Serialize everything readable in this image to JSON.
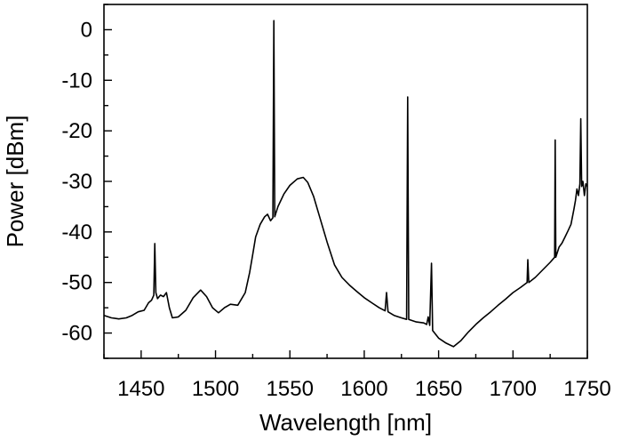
{
  "chart_data": {
    "type": "line",
    "title": "",
    "xlabel": "Wavelength [nm]",
    "ylabel": "Power [dBm]",
    "xlim": [
      1425,
      1750
    ],
    "ylim": [
      -65,
      5
    ],
    "xticks": [
      1450,
      1500,
      1550,
      1600,
      1650,
      1700,
      1750
    ],
    "yticks": [
      0,
      -10,
      -20,
      -30,
      -40,
      -50,
      -60
    ],
    "grid": false,
    "legend": "none",
    "line_color": "#000000",
    "series": [
      {
        "points": [
          [
            1425,
            -56.5
          ],
          [
            1430,
            -57.0
          ],
          [
            1435,
            -57.2
          ],
          [
            1440,
            -57.0
          ],
          [
            1444,
            -56.5
          ],
          [
            1448,
            -55.8
          ],
          [
            1452,
            -55.5
          ],
          [
            1455,
            -54.0
          ],
          [
            1457,
            -53.5
          ],
          [
            1458.5,
            -52.5
          ],
          [
            1459.2,
            -42.3
          ],
          [
            1459.9,
            -52.0
          ],
          [
            1461,
            -53.2
          ],
          [
            1463,
            -52.5
          ],
          [
            1465,
            -52.8
          ],
          [
            1467,
            -52.0
          ],
          [
            1469,
            -55.0
          ],
          [
            1471,
            -57.0
          ],
          [
            1475,
            -56.8
          ],
          [
            1480,
            -55.5
          ],
          [
            1485,
            -53.0
          ],
          [
            1490,
            -51.5
          ],
          [
            1494,
            -52.8
          ],
          [
            1498,
            -55.0
          ],
          [
            1502,
            -56.0
          ],
          [
            1506,
            -55.0
          ],
          [
            1510,
            -54.3
          ],
          [
            1515,
            -54.5
          ],
          [
            1520,
            -52.0
          ],
          [
            1523,
            -48.0
          ],
          [
            1525,
            -44.5
          ],
          [
            1527,
            -41.0
          ],
          [
            1530,
            -38.5
          ],
          [
            1533,
            -37.0
          ],
          [
            1535,
            -36.5
          ],
          [
            1537,
            -37.8
          ],
          [
            1538.6,
            -37.2
          ],
          [
            1539.2,
            1.8
          ],
          [
            1539.8,
            -37.0
          ],
          [
            1542,
            -35.0
          ],
          [
            1546,
            -32.5
          ],
          [
            1550,
            -30.8
          ],
          [
            1555,
            -29.5
          ],
          [
            1559,
            -29.2
          ],
          [
            1562,
            -30.2
          ],
          [
            1566,
            -33.0
          ],
          [
            1570,
            -37.0
          ],
          [
            1575,
            -42.0
          ],
          [
            1580,
            -46.5
          ],
          [
            1585,
            -49.0
          ],
          [
            1590,
            -50.5
          ],
          [
            1595,
            -51.8
          ],
          [
            1600,
            -53.0
          ],
          [
            1605,
            -54.0
          ],
          [
            1610,
            -55.0
          ],
          [
            1614,
            -55.6
          ],
          [
            1615,
            -52.0
          ],
          [
            1616,
            -55.8
          ],
          [
            1620,
            -56.5
          ],
          [
            1625,
            -57.0
          ],
          [
            1628.5,
            -57.3
          ],
          [
            1629.2,
            -13.3
          ],
          [
            1629.9,
            -57.3
          ],
          [
            1635,
            -57.8
          ],
          [
            1640,
            -58.0
          ],
          [
            1642,
            -58.3
          ],
          [
            1643,
            -56.8
          ],
          [
            1644,
            -58.5
          ],
          [
            1645.2,
            -46.2
          ],
          [
            1646,
            -59.5
          ],
          [
            1650,
            -61.0
          ],
          [
            1655,
            -62.0
          ],
          [
            1660,
            -62.7
          ],
          [
            1665,
            -61.5
          ],
          [
            1670,
            -59.8
          ],
          [
            1675,
            -58.3
          ],
          [
            1680,
            -57.0
          ],
          [
            1685,
            -55.8
          ],
          [
            1690,
            -54.5
          ],
          [
            1695,
            -53.3
          ],
          [
            1700,
            -52.0
          ],
          [
            1705,
            -51.0
          ],
          [
            1709.5,
            -50.0
          ],
          [
            1710,
            -45.5
          ],
          [
            1710.6,
            -50.0
          ],
          [
            1715,
            -49.0
          ],
          [
            1720,
            -47.5
          ],
          [
            1725,
            -46.0
          ],
          [
            1728,
            -45.0
          ],
          [
            1728.4,
            -21.8
          ],
          [
            1728.8,
            -45.0
          ],
          [
            1731,
            -43.0
          ],
          [
            1733,
            -42.2
          ],
          [
            1735,
            -41.0
          ],
          [
            1737,
            -39.8
          ],
          [
            1739,
            -38.5
          ],
          [
            1741,
            -35.5
          ],
          [
            1742,
            -33.8
          ],
          [
            1743,
            -31.5
          ],
          [
            1744,
            -32.8
          ],
          [
            1745,
            -30.5
          ],
          [
            1745.6,
            -17.6
          ],
          [
            1746.2,
            -31.0
          ],
          [
            1747,
            -30.0
          ],
          [
            1748,
            -32.8
          ],
          [
            1749,
            -30.5
          ],
          [
            1750,
            -31.0
          ]
        ]
      }
    ]
  }
}
